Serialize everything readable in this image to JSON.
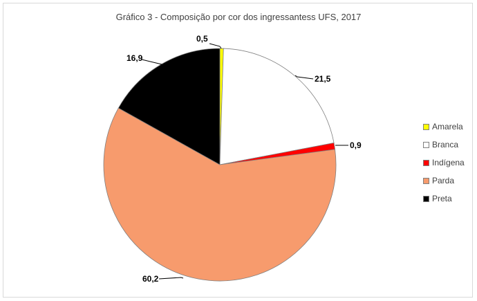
{
  "chart_data": {
    "type": "pie",
    "title": "Gráfico 3 - Composição por cor dos ingressantess UFS, 2017",
    "legend_position": "right",
    "slices": [
      {
        "name": "Amarela",
        "label": "0,5",
        "value": 0.5,
        "color": "#ffff00"
      },
      {
        "name": "Branca",
        "label": "21,5",
        "value": 21.5,
        "color": "#ffffff"
      },
      {
        "name": "Indígena",
        "label": "0,9",
        "value": 0.9,
        "color": "#ff0000"
      },
      {
        "name": "Parda",
        "label": "60,2",
        "value": 60.2,
        "color": "#f79b6d"
      },
      {
        "name": "Preta",
        "label": "16,9",
        "value": 16.9,
        "color": "#000000"
      }
    ]
  }
}
